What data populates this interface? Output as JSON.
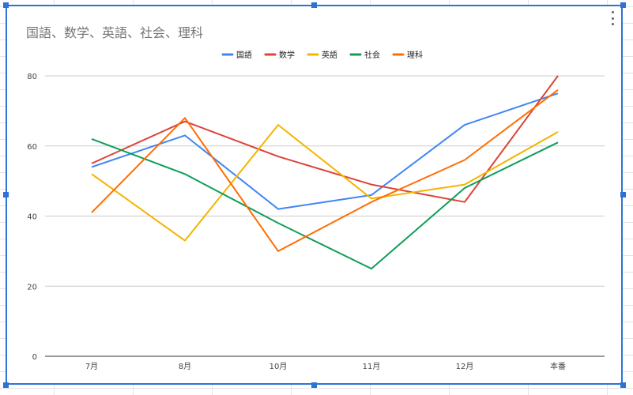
{
  "chart_data": {
    "type": "line",
    "title": "国語、数学、英語、社会、理科",
    "xlabel": "",
    "ylabel": "",
    "categories": [
      "7月",
      "8月",
      "10月",
      "11月",
      "12月",
      "本番"
    ],
    "ylim": [
      0,
      80
    ],
    "yticks": [
      0,
      20,
      40,
      60,
      80
    ],
    "grid": true,
    "legend_position": "top",
    "series": [
      {
        "name": "国語",
        "color": "#4285f4",
        "values": [
          54,
          63,
          42,
          46,
          66,
          75
        ]
      },
      {
        "name": "数学",
        "color": "#db4437",
        "values": [
          55,
          67,
          57,
          49,
          44,
          80
        ]
      },
      {
        "name": "英語",
        "color": "#f4b400",
        "values": [
          52,
          33,
          66,
          45,
          49,
          64
        ]
      },
      {
        "name": "社会",
        "color": "#0f9d58",
        "values": [
          62,
          52,
          38,
          25,
          48,
          61
        ]
      },
      {
        "name": "理科",
        "color": "#ff6d01",
        "values": [
          41,
          68,
          30,
          44,
          56,
          76
        ]
      }
    ]
  }
}
